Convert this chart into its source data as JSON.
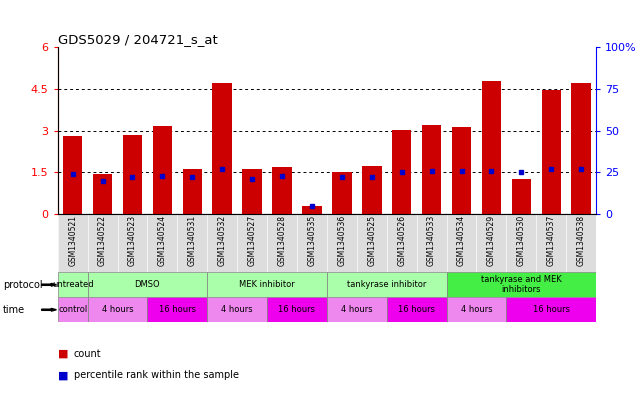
{
  "title": "GDS5029 / 204721_s_at",
  "samples": [
    "GSM1340521",
    "GSM1340522",
    "GSM1340523",
    "GSM1340524",
    "GSM1340531",
    "GSM1340532",
    "GSM1340527",
    "GSM1340528",
    "GSM1340535",
    "GSM1340536",
    "GSM1340525",
    "GSM1340526",
    "GSM1340533",
    "GSM1340534",
    "GSM1340529",
    "GSM1340530",
    "GSM1340537",
    "GSM1340538"
  ],
  "count_values": [
    2.8,
    1.45,
    2.85,
    3.15,
    1.6,
    4.7,
    1.6,
    1.7,
    0.28,
    1.52,
    1.72,
    3.02,
    3.2,
    3.12,
    4.8,
    1.25,
    4.45,
    4.7
  ],
  "percentile_values": [
    24,
    20,
    22,
    23,
    22,
    27,
    21,
    23,
    5,
    22,
    22,
    25,
    26,
    26,
    26,
    25,
    27,
    27
  ],
  "ylim_left": [
    0,
    6
  ],
  "ylim_right": [
    0,
    100
  ],
  "yticks_left": [
    0,
    1.5,
    3.0,
    4.5
  ],
  "yticks_right": [
    0,
    25,
    50,
    75
  ],
  "ytick_left_top": 6,
  "ytick_right_top": "100%",
  "bar_color": "#cc0000",
  "percentile_color": "#0000cc",
  "chart_bg": "#ffffff",
  "plot_area_bg": "#ffffff",
  "protocol_groups": [
    {
      "label": "untreated",
      "start": 0,
      "end": 1,
      "color": "#aaffaa"
    },
    {
      "label": "DMSO",
      "start": 1,
      "end": 5,
      "color": "#aaffaa"
    },
    {
      "label": "MEK inhibitor",
      "start": 5,
      "end": 9,
      "color": "#aaffaa"
    },
    {
      "label": "tankyrase inhibitor",
      "start": 9,
      "end": 13,
      "color": "#aaffaa"
    },
    {
      "label": "tankyrase and MEK\ninhibitors",
      "start": 13,
      "end": 18,
      "color": "#44ee44"
    }
  ],
  "time_groups": [
    {
      "label": "control",
      "start": 0,
      "end": 1,
      "color": "#ee88ee"
    },
    {
      "label": "4 hours",
      "start": 1,
      "end": 3,
      "color": "#ee88ee"
    },
    {
      "label": "16 hours",
      "start": 3,
      "end": 5,
      "color": "#ee00ee"
    },
    {
      "label": "4 hours",
      "start": 5,
      "end": 7,
      "color": "#ee88ee"
    },
    {
      "label": "16 hours",
      "start": 7,
      "end": 9,
      "color": "#ee00ee"
    },
    {
      "label": "4 hours",
      "start": 9,
      "end": 11,
      "color": "#ee88ee"
    },
    {
      "label": "16 hours",
      "start": 11,
      "end": 13,
      "color": "#ee00ee"
    },
    {
      "label": "4 hours",
      "start": 13,
      "end": 15,
      "color": "#ee88ee"
    },
    {
      "label": "16 hours",
      "start": 15,
      "end": 18,
      "color": "#ee00ee"
    }
  ],
  "legend_count_label": "count",
  "legend_percentile_label": "percentile rank within the sample",
  "left_axis_color": "red",
  "right_axis_color": "blue",
  "sample_area_bg": "#dddddd",
  "n_samples": 18
}
